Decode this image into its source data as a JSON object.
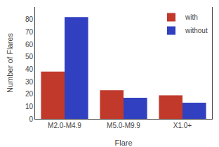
{
  "chart_data": {
    "type": "bar",
    "xlabel": "Flare",
    "ylabel": "Number of Flares",
    "categories": [
      "M2.0-M4.9",
      "M5.0-M9.9",
      "X1.0+"
    ],
    "series": [
      {
        "name": "with",
        "color": "#c0392b",
        "values": [
          38,
          23,
          19
        ]
      },
      {
        "name": "without",
        "color": "#3040c0",
        "values": [
          82,
          17,
          13
        ]
      }
    ],
    "ylim": [
      0,
      90
    ],
    "yticks": [
      0,
      10,
      20,
      30,
      40,
      50,
      60,
      70,
      80
    ],
    "grid": false,
    "legend": "upper right"
  }
}
